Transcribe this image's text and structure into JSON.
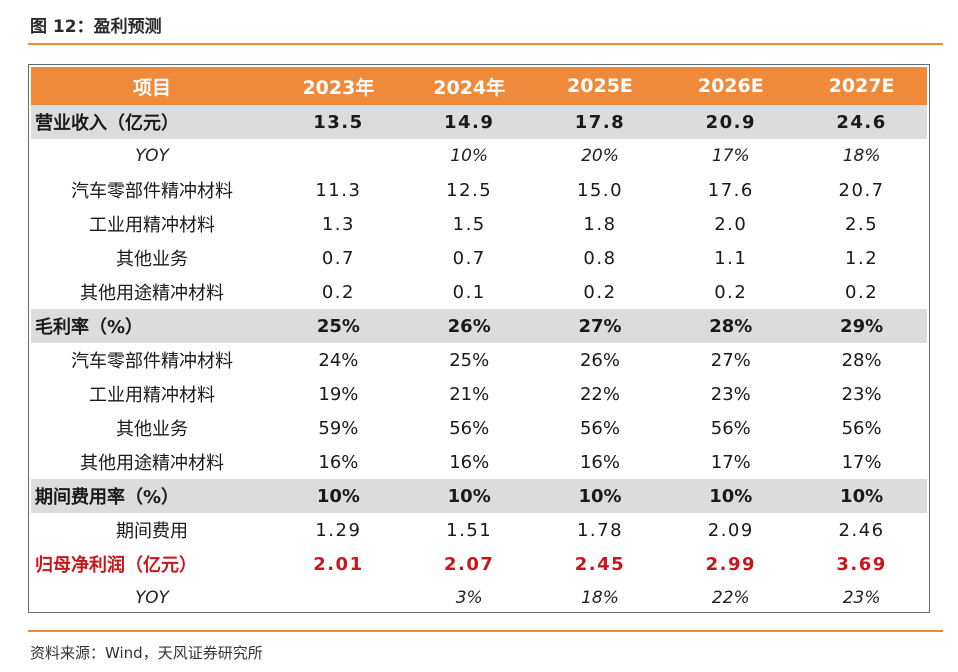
{
  "figure": {
    "title": "图 12：盈利预测",
    "source": "资料来源：Wind，天风证券研究所"
  },
  "table": {
    "headers": [
      "项目",
      "2023年",
      "2024年",
      "2025E",
      "2026E",
      "2027E"
    ],
    "rows": [
      {
        "label": "营业收入（亿元）",
        "values": [
          "13.5",
          "14.9",
          "17.8",
          "20.9",
          "24.6"
        ]
      },
      {
        "label": "YOY",
        "values": [
          "",
          "10%",
          "20%",
          "17%",
          "18%"
        ]
      },
      {
        "label": "汽车零部件精冲材料",
        "values": [
          "11.3",
          "12.5",
          "15.0",
          "17.6",
          "20.7"
        ]
      },
      {
        "label": "工业用精冲材料",
        "values": [
          "1.3",
          "1.5",
          "1.8",
          "2.0",
          "2.5"
        ]
      },
      {
        "label": "其他业务",
        "values": [
          "0.7",
          "0.7",
          "0.8",
          "1.1",
          "1.2"
        ]
      },
      {
        "label": "其他用途精冲材料",
        "values": [
          "0.2",
          "0.1",
          "0.2",
          "0.2",
          "0.2"
        ]
      },
      {
        "label": "毛利率（%）",
        "values": [
          "25%",
          "26%",
          "27%",
          "28%",
          "29%"
        ]
      },
      {
        "label": "汽车零部件精冲材料",
        "values": [
          "24%",
          "25%",
          "26%",
          "27%",
          "28%"
        ]
      },
      {
        "label": "工业用精冲材料",
        "values": [
          "19%",
          "21%",
          "22%",
          "23%",
          "23%"
        ]
      },
      {
        "label": "其他业务",
        "values": [
          "59%",
          "56%",
          "56%",
          "56%",
          "56%"
        ]
      },
      {
        "label": "其他用途精冲材料",
        "values": [
          "16%",
          "16%",
          "16%",
          "17%",
          "17%"
        ]
      },
      {
        "label": "期间费用率（%）",
        "values": [
          "10%",
          "10%",
          "10%",
          "10%",
          "10%"
        ]
      },
      {
        "label": "期间费用",
        "values": [
          "1.29",
          "1.51",
          "1.78",
          "2.09",
          "2.46"
        ]
      },
      {
        "label": "归母净利润（亿元）",
        "values": [
          "2.01",
          "2.07",
          "2.45",
          "2.99",
          "3.69"
        ]
      },
      {
        "label": "YOY",
        "values": [
          "",
          "3%",
          "18%",
          "22%",
          "23%"
        ]
      }
    ]
  },
  "colors": {
    "accent": "#ee8a3a",
    "section_bg": "#dcdcdc",
    "profit_text": "#c8161d"
  }
}
